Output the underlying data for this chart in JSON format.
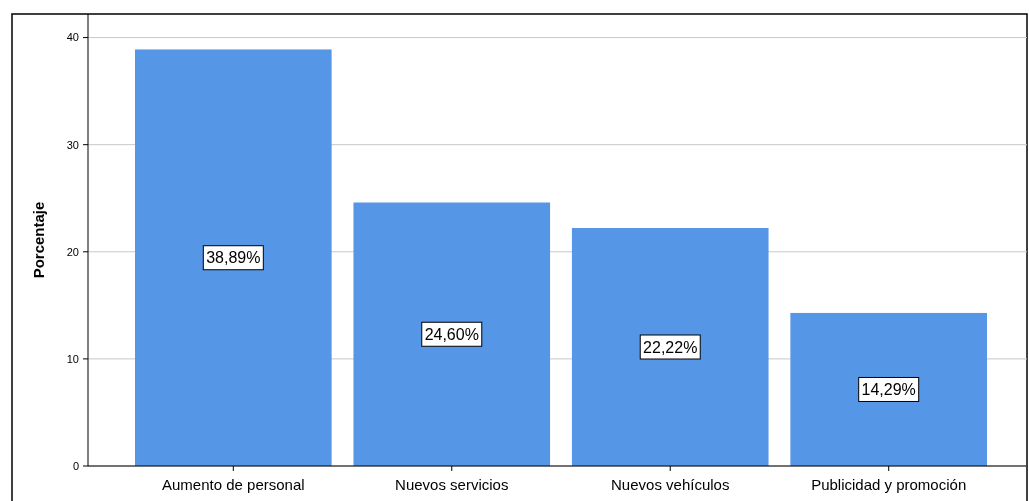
{
  "chart_data": {
    "type": "bar",
    "ylabel": "Porcentaje",
    "categories": [
      "Aumento de personal",
      "Nuevos servicios",
      "Nuevos vehículos",
      "Publicidad y promoción"
    ],
    "values": [
      38.89,
      24.6,
      22.22,
      14.29
    ],
    "value_labels": [
      "38,89%",
      "24,60%",
      "22,22%",
      "14,29%"
    ],
    "color": "#5596e6",
    "ylim": [
      0,
      42.2
    ],
    "yticks": [
      0,
      10,
      20,
      30,
      40
    ],
    "grid": "y"
  }
}
